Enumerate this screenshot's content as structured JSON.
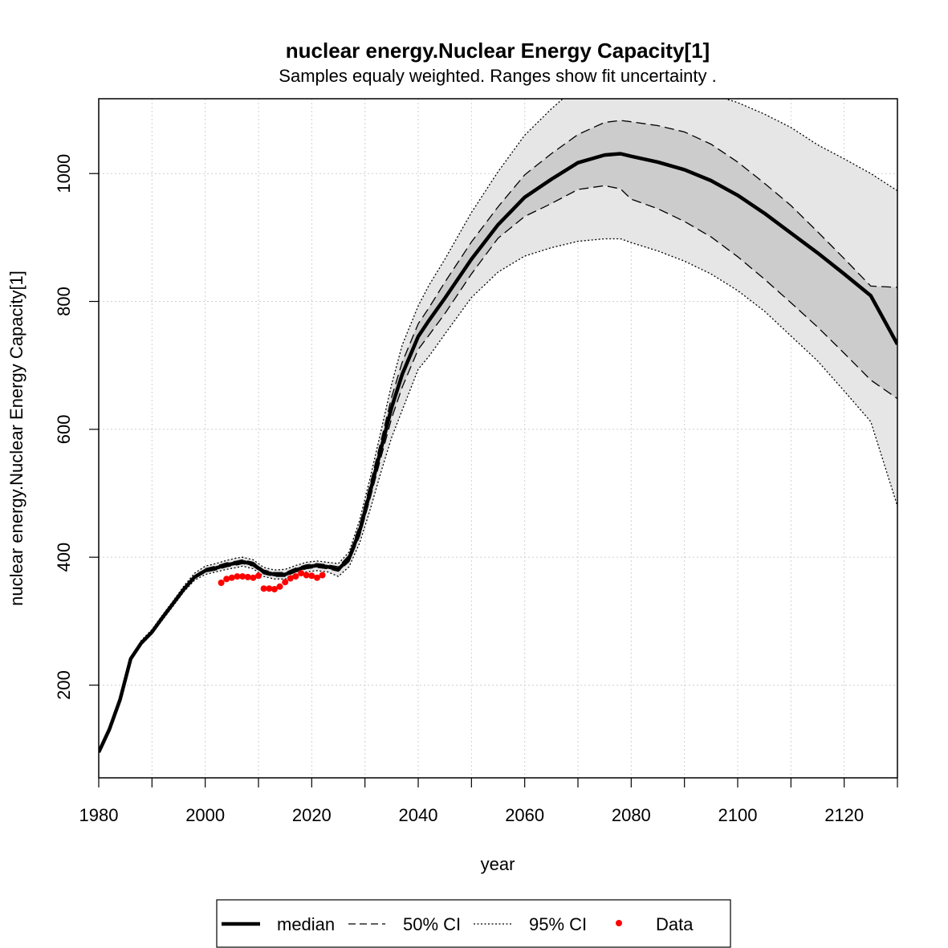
{
  "chart_data": {
    "type": "line",
    "title": "nuclear energy.Nuclear Energy Capacity[1]",
    "subtitle": "Samples equaly weighted. Ranges show  fit uncertainty .",
    "xlabel": "year",
    "ylabel": "nuclear energy.Nuclear Energy Capacity[1]",
    "xlim": [
      1980,
      2130
    ],
    "ylim": [
      55,
      1117
    ],
    "x_ticks": [
      1980,
      2000,
      2020,
      2040,
      2060,
      2080,
      2100,
      2120
    ],
    "y_ticks": [
      200,
      400,
      600,
      800,
      1000
    ],
    "grid": true,
    "legend": {
      "position": "bottom",
      "entries": [
        {
          "label": "median",
          "style": "solid"
        },
        {
          "label": "50% CI",
          "style": "dashed"
        },
        {
          "label": "95% CI",
          "style": "dotted"
        },
        {
          "label": "Data",
          "style": "point",
          "color": "#ff0000"
        }
      ]
    },
    "colors": {
      "median": "#000000",
      "ci50_fill": "#cccccc",
      "ci95_fill": "#e6e6e6",
      "data": "#ff0000"
    },
    "x": [
      1980,
      1982,
      1984,
      1986,
      1988,
      1990,
      1992,
      1994,
      1996,
      1998,
      2000,
      2002,
      2004,
      2006,
      2007,
      2009,
      2011,
      2013,
      2015,
      2017,
      2019,
      2021,
      2023,
      2025,
      2027,
      2029,
      2031,
      2033,
      2035,
      2037,
      2040,
      2042,
      2045,
      2050,
      2055,
      2060,
      2065,
      2070,
      2075,
      2078,
      2080,
      2085,
      2090,
      2095,
      2100,
      2105,
      2110,
      2115,
      2120,
      2125,
      2130
    ],
    "series": [
      {
        "name": "median",
        "values": [
          95,
          131,
          177,
          241,
          266,
          283,
          306,
          328,
          350,
          369,
          379,
          383,
          388,
          391,
          393,
          389,
          377,
          373,
          373,
          380,
          385,
          387,
          385,
          381,
          398,
          441,
          503,
          569,
          634,
          686,
          745,
          770,
          805,
          866,
          920,
          963,
          991,
          1017,
          1029,
          1031,
          1027,
          1018,
          1006,
          989,
          966,
          938,
          907,
          876,
          843,
          809,
          733
        ]
      },
      {
        "name": "50% CI upper",
        "values": [
          95,
          131,
          177,
          241,
          268,
          285,
          308,
          330,
          352,
          371,
          382,
          386,
          391,
          394,
          396,
          392,
          380,
          376,
          376,
          383,
          388,
          390,
          388,
          385,
          403,
          450,
          515,
          582,
          650,
          705,
          765,
          790,
          830,
          893,
          948,
          998,
          1031,
          1061,
          1080,
          1083,
          1081,
          1075,
          1065,
          1046,
          1018,
          985,
          950,
          909,
          867,
          824,
          822
        ]
      },
      {
        "name": "50% CI lower",
        "values": [
          95,
          131,
          177,
          241,
          265,
          281,
          304,
          326,
          348,
          367,
          377,
          380,
          385,
          388,
          390,
          386,
          374,
          370,
          370,
          377,
          382,
          384,
          382,
          378,
          393,
          433,
          493,
          556,
          617,
          666,
          725,
          747,
          781,
          843,
          899,
          933,
          953,
          975,
          981,
          976,
          960,
          945,
          925,
          901,
          870,
          835,
          798,
          760,
          719,
          677,
          648
        ]
      },
      {
        "name": "95% CI upper",
        "values": [
          95,
          131,
          177,
          241,
          270,
          287,
          310,
          332,
          355,
          375,
          386,
          390,
          395,
          399,
          400,
          396,
          384,
          380,
          381,
          387,
          392,
          394,
          392,
          390,
          408,
          458,
          525,
          597,
          670,
          732,
          793,
          825,
          866,
          939,
          1003,
          1060,
          1101,
          1138,
          1152,
          1154,
          1153,
          1145,
          1132,
          1124,
          1111,
          1093,
          1072,
          1045,
          1023,
          1000,
          973
        ]
      },
      {
        "name": "95% CI lower",
        "values": [
          95,
          131,
          177,
          241,
          263,
          280,
          302,
          324,
          346,
          364,
          373,
          377,
          381,
          384,
          386,
          382,
          370,
          366,
          366,
          373,
          377,
          379,
          377,
          370,
          385,
          422,
          475,
          533,
          587,
          630,
          694,
          714,
          749,
          806,
          846,
          871,
          884,
          894,
          898,
          898,
          892,
          879,
          863,
          843,
          817,
          785,
          746,
          707,
          660,
          612,
          480
        ]
      }
    ],
    "data_points": {
      "name": "Data",
      "x": [
        2003,
        2004,
        2005,
        2006,
        2007,
        2008,
        2009,
        2010,
        2011,
        2012,
        2013,
        2014,
        2015,
        2016,
        2017,
        2018,
        2019,
        2020,
        2021,
        2022
      ],
      "y": [
        360,
        366,
        368,
        370,
        370,
        369,
        368,
        371,
        351,
        351,
        350,
        354,
        361,
        367,
        370,
        375,
        372,
        371,
        368,
        372
      ]
    }
  }
}
